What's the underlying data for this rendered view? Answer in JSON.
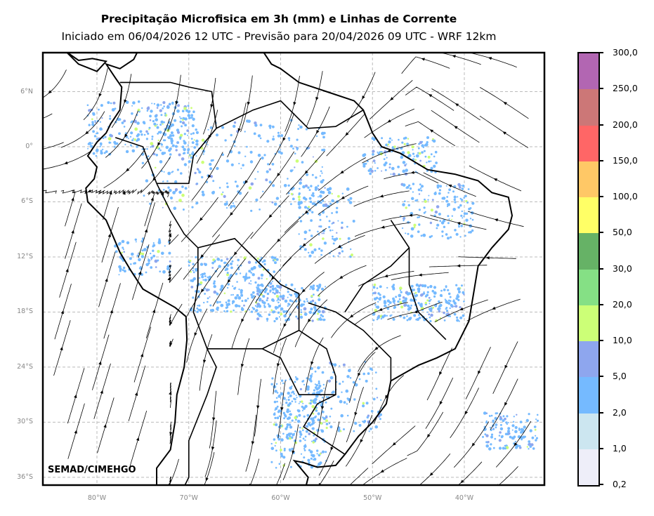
{
  "title": "Precipitação Microfisica em 3h (mm) e Linhas de Corrente",
  "subtitle": "Iniciado em 06/04/2026 12 UTC - Previsão para 20/04/2026 09 UTC - WRF 12km",
  "credit": "SEMAD/CIMEHGO",
  "lat_labels": [
    "6°N",
    "0°",
    "6°S",
    "12°S",
    "18°S",
    "24°S",
    "30°S",
    "36°S"
  ],
  "lon_labels": [
    "80°W",
    "70°W",
    "60°W",
    "50°W",
    "40°W"
  ],
  "colorbar": {
    "levels": [
      "0,2",
      "1,0",
      "2,0",
      "5,0",
      "10,0",
      "20,0",
      "30,0",
      "50,0",
      "100,0",
      "150,0",
      "200,0",
      "250,0",
      "300,0"
    ],
    "colors": [
      "#eeeef9",
      "#cce6f0",
      "#75baff",
      "#8ea6ee",
      "#ccff77",
      "#85e085",
      "#66b266",
      "#ffff66",
      "#ffc866",
      "#ff6666",
      "#cc7777",
      "#b266b2"
    ]
  }
}
